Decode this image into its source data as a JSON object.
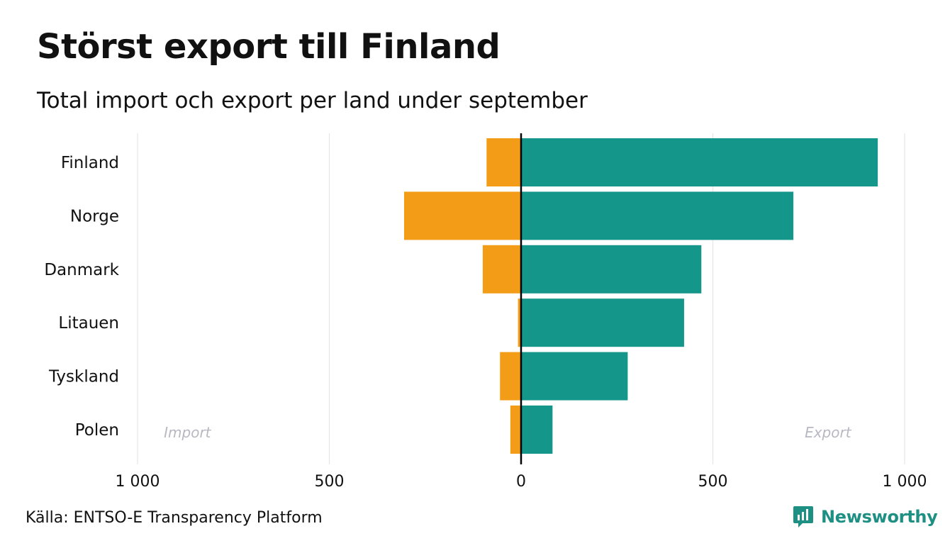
{
  "title": "Störst export till Finland",
  "subtitle": "Total import och export per land under september",
  "source": "Källa: ENTSO-E Transparency Platform",
  "brand": "Newsworthy",
  "colors": {
    "import": "#f39c18",
    "export": "#14968a",
    "grid": "#e6e6e6",
    "zero_line": "#000000",
    "annotation": "#b8b8c2",
    "brand": "#1e8f83"
  },
  "chart_data": {
    "type": "bar",
    "orientation": "horizontal-diverging",
    "categories": [
      "Finland",
      "Norge",
      "Danmark",
      "Litauen",
      "Tyskland",
      "Polen"
    ],
    "series": [
      {
        "name": "Import",
        "values": [
          -90,
          -305,
          -100,
          -8,
          -55,
          -28
        ]
      },
      {
        "name": "Export",
        "values": [
          930,
          710,
          470,
          425,
          278,
          82
        ]
      }
    ],
    "xlim": [
      -1000,
      1000
    ],
    "ticks": [
      -1000,
      -500,
      0,
      500,
      1000
    ],
    "tick_labels": [
      "1 000",
      "500",
      "0",
      "500",
      "1 000"
    ],
    "annotations": {
      "left": "Import",
      "right": "Export"
    },
    "grid": true
  }
}
